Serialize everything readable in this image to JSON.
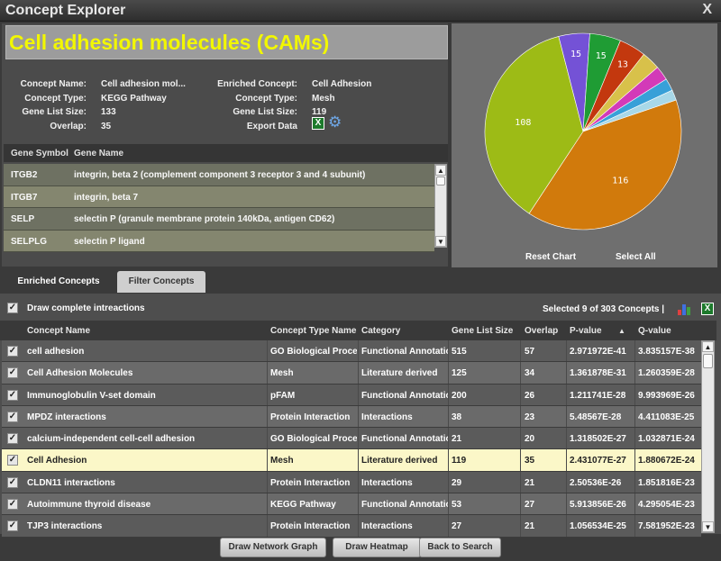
{
  "window": {
    "title": "Concept Explorer",
    "close_label": "X"
  },
  "concept": {
    "title": "Cell adhesion molecules (CAMs)",
    "left_labels": [
      "Concept Name:",
      "Concept Type:",
      "Gene List Size:",
      "Overlap:"
    ],
    "left_values": [
      "Cell adhesion mol...",
      "KEGG Pathway",
      "133",
      "35"
    ],
    "right_labels": [
      "Enriched Concept:",
      "Concept Type:",
      "Gene List Size:",
      "Export Data"
    ],
    "right_values": [
      "Cell Adhesion",
      "Mesh",
      "119"
    ],
    "excel_icon": "excel-icon",
    "gear_icon": "gear-icon"
  },
  "genes": {
    "headers": [
      "Gene Symbol",
      "Gene Name"
    ],
    "rows": [
      {
        "symbol": "ITGB2",
        "name": "integrin, beta 2 (complement component 3 receptor 3 and 4 subunit)"
      },
      {
        "symbol": "ITGB7",
        "name": "integrin, beta 7"
      },
      {
        "symbol": "SELP",
        "name": "selectin P (granule membrane protein 140kDa, antigen CD62)"
      },
      {
        "symbol": "SELPLG",
        "name": "selectin P ligand"
      }
    ]
  },
  "pie": {
    "reset_label": "Reset Chart",
    "select_all_label": "Select All"
  },
  "chart_data": {
    "type": "pie",
    "title": "",
    "slices": [
      {
        "value": 116,
        "color": "#d17a0c",
        "label": "116"
      },
      {
        "value": 108,
        "color": "#9dbb16",
        "label": "108"
      },
      {
        "value": 15,
        "color": "#7452d6",
        "label": "15"
      },
      {
        "value": 15,
        "color": "#1f9c34",
        "label": "15"
      },
      {
        "value": 13,
        "color": "#c3380e",
        "label": "13"
      },
      {
        "value": 9,
        "color": "#d8c14a",
        "label": ""
      },
      {
        "value": 7,
        "color": "#d33ab8",
        "label": ""
      },
      {
        "value": 6,
        "color": "#38a0d8",
        "label": ""
      },
      {
        "value": 5,
        "color": "#a8d8e8",
        "label": ""
      }
    ]
  },
  "tabs": {
    "enriched": "Enriched Concepts",
    "filter": "Filter Concepts"
  },
  "grid": {
    "draw_complete_label": "Draw complete intreactions",
    "selected_info": "Selected 9 of 303 Concepts   |",
    "headers": [
      "Concept Name",
      "Concept Type Name",
      "Category",
      "Gene List Size",
      "Overlap",
      "P-value",
      "Q-value"
    ],
    "sort_arrow": "▲",
    "rows": [
      {
        "name": "cell adhesion",
        "type": "GO Biological Proce",
        "category": "Functional Annotatio",
        "size": "515",
        "overlap": "57",
        "p": "2.971972E-41",
        "q": "3.835157E-38"
      },
      {
        "name": "Cell Adhesion Molecules",
        "type": "Mesh",
        "category": "Literature derived",
        "size": "125",
        "overlap": "34",
        "p": "1.361878E-31",
        "q": "1.260359E-28"
      },
      {
        "name": "Immunoglobulin V-set domain",
        "type": "pFAM",
        "category": "Functional Annotatio",
        "size": "200",
        "overlap": "26",
        "p": "1.211741E-28",
        "q": "9.993969E-26"
      },
      {
        "name": "MPDZ interactions",
        "type": "Protein Interaction",
        "category": "Interactions",
        "size": "38",
        "overlap": "23",
        "p": "5.48567E-28",
        "q": "4.411083E-25"
      },
      {
        "name": "calcium-independent cell-cell adhesion",
        "type": "GO Biological Proce",
        "category": "Functional Annotatio",
        "size": "21",
        "overlap": "20",
        "p": "1.318502E-27",
        "q": "1.032871E-24"
      },
      {
        "name": "Cell Adhesion",
        "type": "Mesh",
        "category": "Literature derived",
        "size": "119",
        "overlap": "35",
        "p": "2.431077E-27",
        "q": "1.880672E-24"
      },
      {
        "name": "CLDN11 interactions",
        "type": "Protein Interaction",
        "category": "Interactions",
        "size": "29",
        "overlap": "21",
        "p": "2.50536E-26",
        "q": "1.851816E-23"
      },
      {
        "name": "Autoimmune thyroid disease",
        "type": "KEGG Pathway",
        "category": "Functional Annotatio",
        "size": "53",
        "overlap": "27",
        "p": "5.913856E-26",
        "q": "4.295054E-23"
      },
      {
        "name": "TJP3 interactions",
        "type": "Protein Interaction",
        "category": "Interactions",
        "size": "27",
        "overlap": "21",
        "p": "1.056534E-25",
        "q": "7.581952E-23"
      }
    ]
  },
  "buttons": {
    "network": "Draw Network Graph",
    "heatmap": "Draw Heatmap",
    "back": "Back to Search"
  }
}
